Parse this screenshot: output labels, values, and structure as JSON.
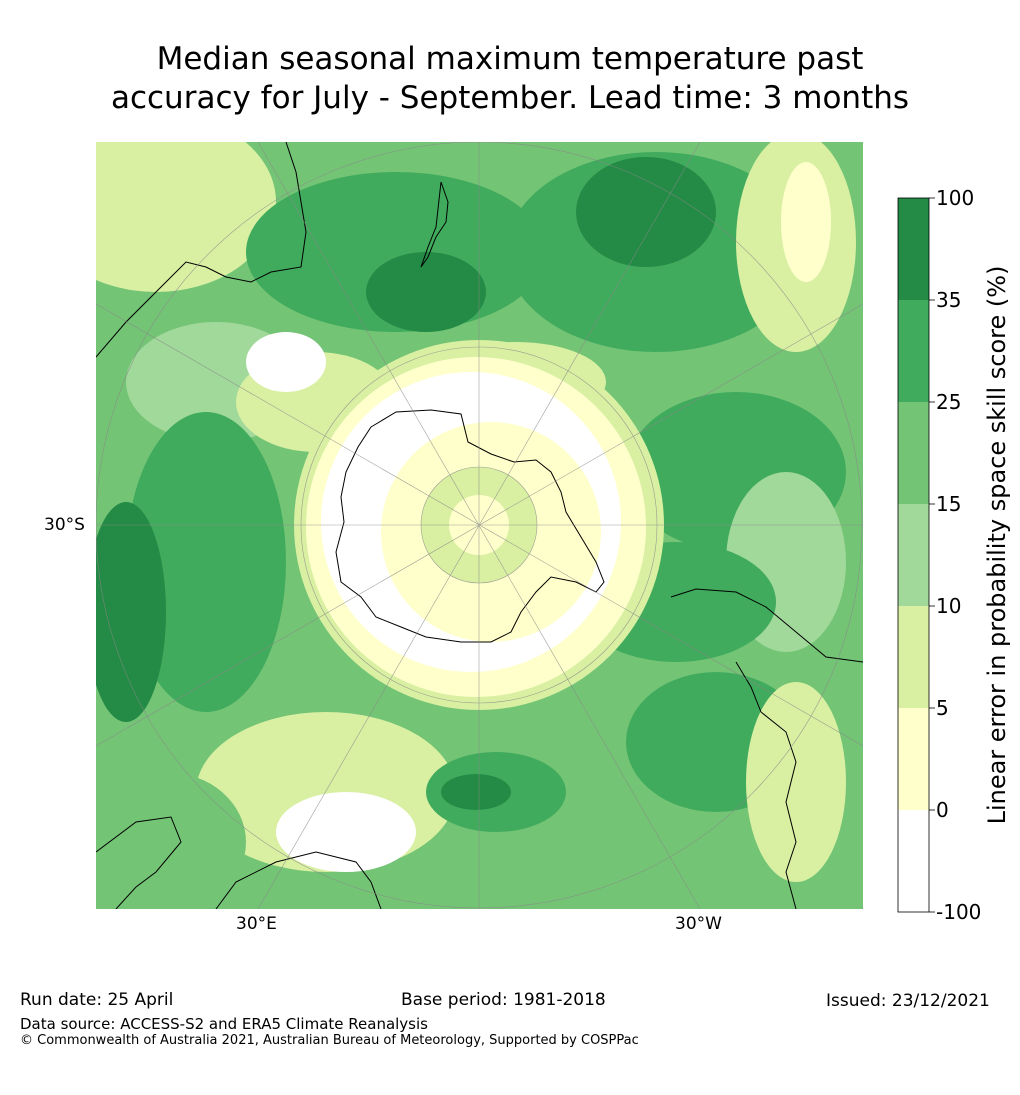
{
  "title_line1": "Median seasonal maximum temperature past",
  "title_line2": "accuracy for July - September. Lead time: 3 months",
  "map": {
    "projection": "south-polar-stereographic",
    "lat_label": "30°S",
    "lon_labels": [
      "30°E",
      "30°W"
    ]
  },
  "colorbar": {
    "label": "Linear error in probability space skill score (%)",
    "ticks": [
      "100",
      "35",
      "25",
      "15",
      "10",
      "5",
      "0",
      "-100"
    ],
    "colors": [
      "#238b45",
      "#41ab5d",
      "#74c476",
      "#a1d99b",
      "#d9f0a3",
      "#ffffcc",
      "#ffffff"
    ],
    "land_outline_color": "#000000",
    "grid_color": "#888888"
  },
  "footer": {
    "run_date": "Run date: 25 April",
    "base_period": "Base period: 1981-2018",
    "issued": "Issued: 23/12/2021",
    "data_source": "Data source: ACCESS-S2 and ERA5 Climate Reanalysis",
    "copyright": "© Commonwealth of Australia 2021, Australian Bureau of Meteorology, Supported by COSPPac"
  }
}
